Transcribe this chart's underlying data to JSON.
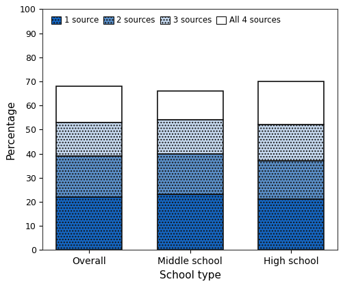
{
  "categories": [
    "Overall",
    "Middle school",
    "High school"
  ],
  "series": {
    "1 source": [
      22,
      23,
      21
    ],
    "2 sources": [
      17,
      17,
      16
    ],
    "3 sources": [
      14,
      14,
      15
    ],
    "All 4 sources": [
      15,
      12,
      18
    ]
  },
  "colors": {
    "1 source": "#1565C0",
    "2 sources": "#5B8FC8",
    "3 sources": "#C5D8EE",
    "All 4 sources": "#FFFFFF"
  },
  "hatch_patterns": {
    "1 source": "....",
    "2 sources": "....",
    "3 sources": "....",
    "All 4 sources": ""
  },
  "legend_labels": [
    "1 source",
    "2 sources",
    "3 sources",
    "All 4 sources"
  ],
  "xlabel": "School type",
  "ylabel": "Percentage",
  "ylim": [
    0,
    100
  ],
  "yticks": [
    0,
    10,
    20,
    30,
    40,
    50,
    60,
    70,
    80,
    90,
    100
  ],
  "bar_width": 0.65,
  "bar_edge_color": "#111111",
  "bar_edge_width": 1.2,
  "background_color": "#FFFFFF",
  "figure_background": "#FFFFFF"
}
